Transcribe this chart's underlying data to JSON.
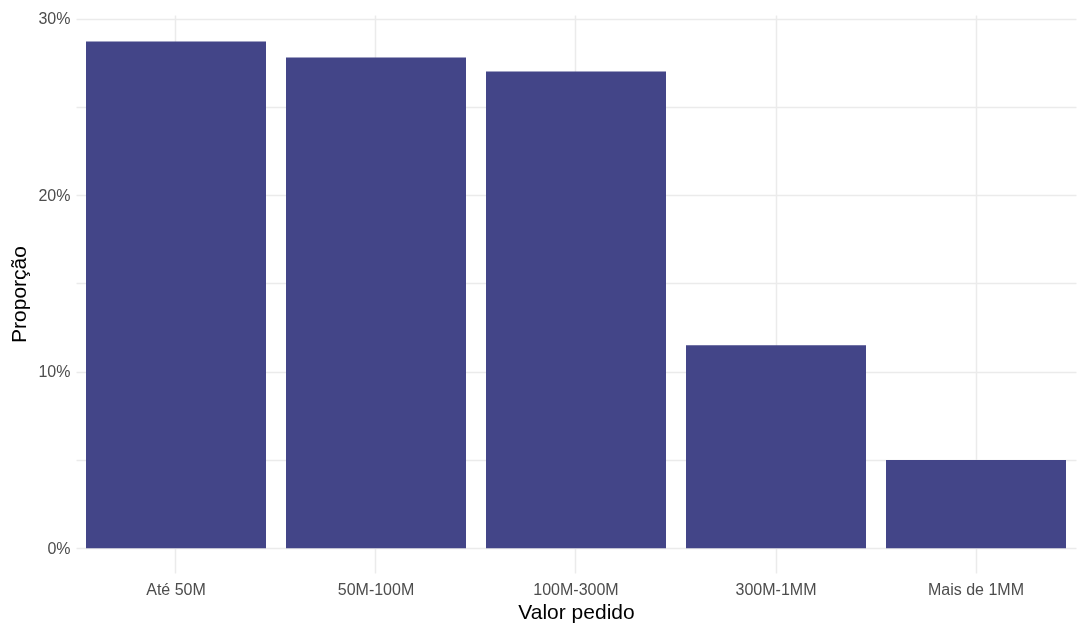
{
  "chart_data": {
    "type": "bar",
    "xlabel": "Valor pedido",
    "ylabel": "Proporção",
    "categories": [
      "Até 50M",
      "50M-100M",
      "100M-300M",
      "300M-1MM",
      "Mais de 1MM"
    ],
    "values": [
      28.7,
      27.8,
      27.0,
      11.5,
      5.0
    ],
    "color": "#434588",
    "ylim": [
      -1.4,
      30.2
    ],
    "yticks": [
      {
        "value": 0,
        "label": "0%"
      },
      {
        "value": 5,
        "label": null
      },
      {
        "value": 10,
        "label": "10%"
      },
      {
        "value": 15,
        "label": null
      },
      {
        "value": 20,
        "label": "20%"
      },
      {
        "value": 25,
        "label": null
      },
      {
        "value": 30,
        "label": "30%"
      }
    ],
    "grid": true
  }
}
